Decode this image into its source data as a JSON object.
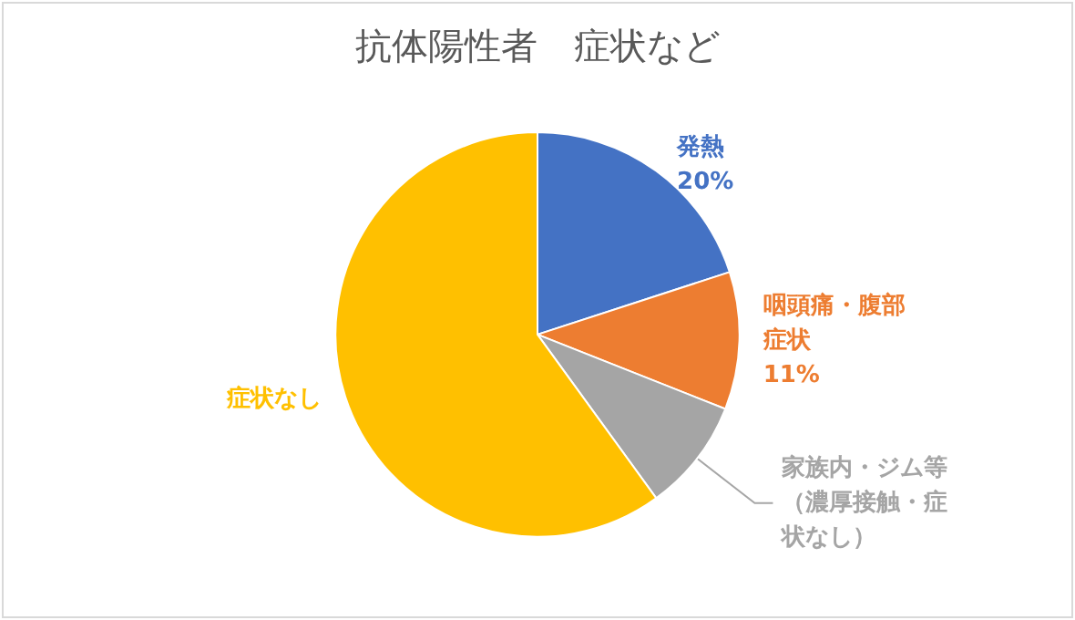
{
  "chart_data": {
    "type": "pie",
    "title": "抗体陽性者　症状など",
    "categories": [
      "発熱",
      "咽頭痛・腹部症状",
      "家族内・ジム等（濃厚接触・症状なし）",
      "症状なし"
    ],
    "values": [
      20,
      11,
      9,
      60
    ],
    "colors": [
      "#4472c4",
      "#ed7d31",
      "#a5a5a5",
      "#ffc000"
    ],
    "value_labels": [
      "20%",
      "11%",
      null,
      null
    ],
    "legend": false
  }
}
